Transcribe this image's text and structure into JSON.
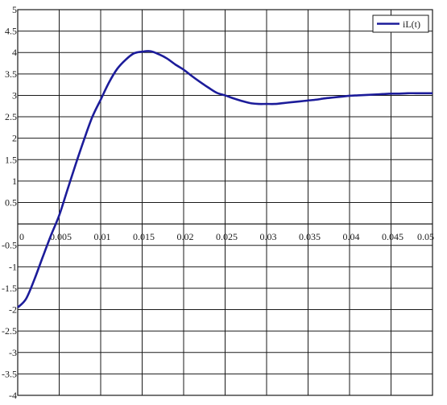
{
  "chart_data": {
    "type": "line",
    "title": "",
    "xlabel": "",
    "ylabel": "",
    "xlim": [
      0,
      0.05
    ],
    "ylim": [
      -4,
      5
    ],
    "grid": true,
    "legend_position": "top-right",
    "x_ticks": [
      "0",
      "0.005",
      "0.01",
      "0.015",
      "0.02",
      "0.025",
      "0.03",
      "0.035",
      "0.04",
      "0.045",
      "0.05"
    ],
    "y_ticks": [
      "5",
      "4.5",
      "4",
      "3.5",
      "3",
      "2.5",
      "2",
      "1.5",
      "1",
      "0.5",
      "0",
      "-0.5",
      "-1",
      "-1.5",
      "-2",
      "-2.5",
      "-3",
      "-3.5",
      "-4"
    ],
    "series": [
      {
        "name": "iL(t)",
        "color": "#1c1c9a",
        "x": [
          0,
          0.001,
          0.002,
          0.003,
          0.004,
          0.005,
          0.006,
          0.007,
          0.008,
          0.009,
          0.01,
          0.011,
          0.012,
          0.013,
          0.014,
          0.015,
          0.016,
          0.017,
          0.018,
          0.019,
          0.02,
          0.021,
          0.022,
          0.023,
          0.024,
          0.025,
          0.026,
          0.027,
          0.028,
          0.029,
          0.03,
          0.031,
          0.032,
          0.033,
          0.034,
          0.035,
          0.036,
          0.037,
          0.038,
          0.039,
          0.04,
          0.041,
          0.042,
          0.043,
          0.044,
          0.045,
          0.046,
          0.047,
          0.048,
          0.049,
          0.05
        ],
        "y": [
          -1.95,
          -1.75,
          -1.3,
          -0.78,
          -0.27,
          0.2,
          0.8,
          1.4,
          1.97,
          2.5,
          2.9,
          3.3,
          3.62,
          3.83,
          3.98,
          4.02,
          4.03,
          3.96,
          3.86,
          3.72,
          3.6,
          3.45,
          3.31,
          3.18,
          3.06,
          3.0,
          2.93,
          2.87,
          2.82,
          2.8,
          2.8,
          2.8,
          2.82,
          2.84,
          2.86,
          2.88,
          2.9,
          2.93,
          2.95,
          2.97,
          2.99,
          3.0,
          3.01,
          3.02,
          3.03,
          3.04,
          3.04,
          3.05,
          3.05,
          3.05,
          3.05
        ]
      }
    ]
  }
}
